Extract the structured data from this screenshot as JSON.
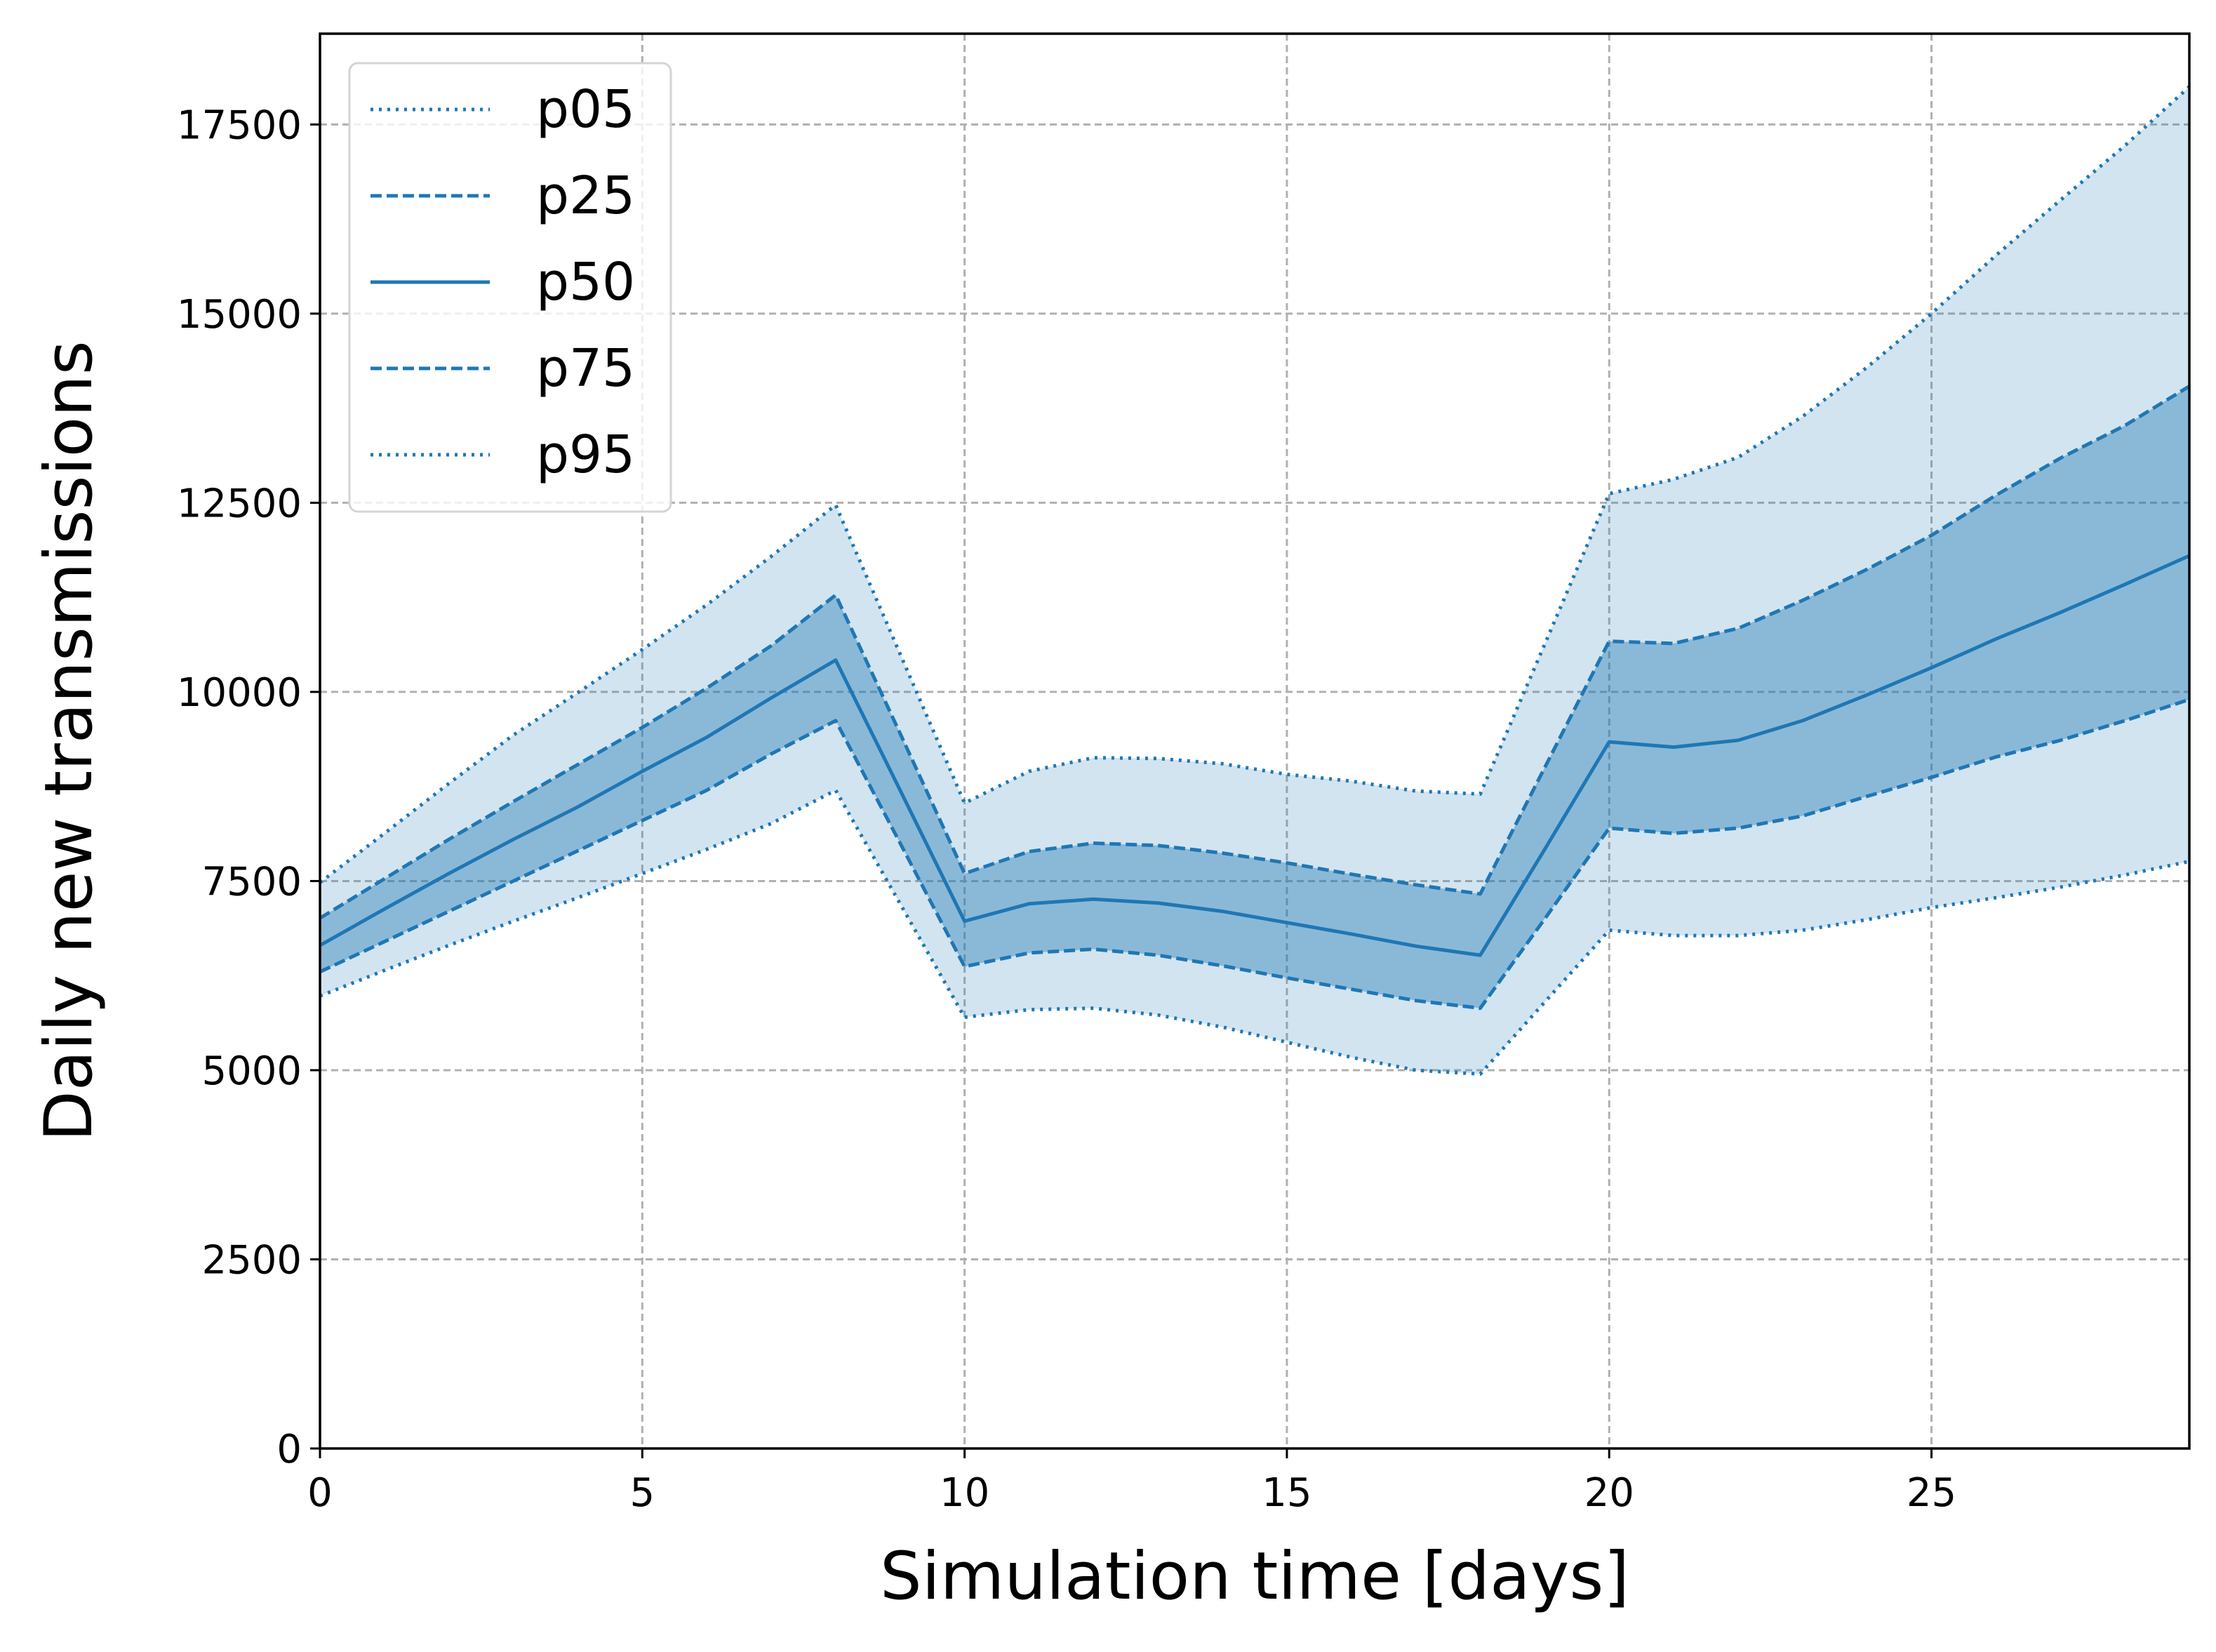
{
  "chart_data": {
    "type": "line",
    "xlabel": "Simulation time [days]",
    "ylabel": "Daily new transmissions",
    "xlim": [
      0,
      29
    ],
    "ylim": [
      0,
      18700
    ],
    "xticks": [
      0,
      5,
      10,
      15,
      20,
      25
    ],
    "yticks": [
      0,
      2500,
      5000,
      7500,
      10000,
      12500,
      15000,
      17500
    ],
    "xtick_labels": [
      "0",
      "5",
      "10",
      "15",
      "20",
      "25"
    ],
    "ytick_labels": [
      "0",
      "2500",
      "5000",
      "7500",
      "10000",
      "12500",
      "15000",
      "17500"
    ],
    "grid": true,
    "legend_position": "upper-left",
    "color": "#1f77b4",
    "x": [
      0,
      1,
      2,
      3,
      4,
      5,
      6,
      7,
      8,
      9,
      10,
      11,
      12,
      13,
      14,
      15,
      16,
      17,
      18,
      19,
      20,
      21,
      22,
      23,
      24,
      25,
      26,
      27,
      28,
      29
    ],
    "series": [
      {
        "name": "p05",
        "style": "dotted",
        "values": [
          5980,
          6320,
          6650,
          6970,
          7280,
          7600,
          7920,
          8260,
          8700,
          7200,
          5700,
          5800,
          5820,
          5730,
          5570,
          5370,
          5170,
          5000,
          4950,
          5900,
          6850,
          6780,
          6780,
          6850,
          6990,
          7150,
          7280,
          7420,
          7580,
          7760
        ]
      },
      {
        "name": "p25",
        "style": "dashed",
        "values": [
          6300,
          6700,
          7100,
          7500,
          7900,
          8300,
          8700,
          9180,
          9620,
          8000,
          6370,
          6550,
          6600,
          6520,
          6380,
          6220,
          6070,
          5920,
          5820,
          7000,
          8200,
          8130,
          8200,
          8360,
          8620,
          8870,
          9140,
          9360,
          9620,
          9900
        ]
      },
      {
        "name": "p50",
        "style": "solid",
        "values": [
          6650,
          7130,
          7600,
          8050,
          8480,
          8950,
          9400,
          9920,
          10420,
          8700,
          6970,
          7200,
          7260,
          7210,
          7100,
          6950,
          6800,
          6640,
          6520,
          7920,
          9340,
          9270,
          9360,
          9620,
          9960,
          10320,
          10700,
          11050,
          11420,
          11800
        ]
      },
      {
        "name": "p75",
        "style": "dashed",
        "values": [
          7010,
          7530,
          8050,
          8550,
          9040,
          9530,
          10050,
          10610,
          11280,
          9450,
          7600,
          7890,
          8000,
          7970,
          7870,
          7740,
          7590,
          7450,
          7330,
          9000,
          10670,
          10640,
          10840,
          11210,
          11620,
          12070,
          12600,
          13090,
          13520,
          14040
        ]
      },
      {
        "name": "p95",
        "style": "dotted",
        "values": [
          7480,
          8130,
          8790,
          9430,
          9990,
          10560,
          11150,
          11790,
          12470,
          10500,
          8530,
          8950,
          9130,
          9120,
          9050,
          8910,
          8820,
          8690,
          8650,
          10630,
          12620,
          12810,
          13100,
          13640,
          14290,
          15000,
          15770,
          16500,
          17220,
          18000
        ]
      }
    ]
  }
}
